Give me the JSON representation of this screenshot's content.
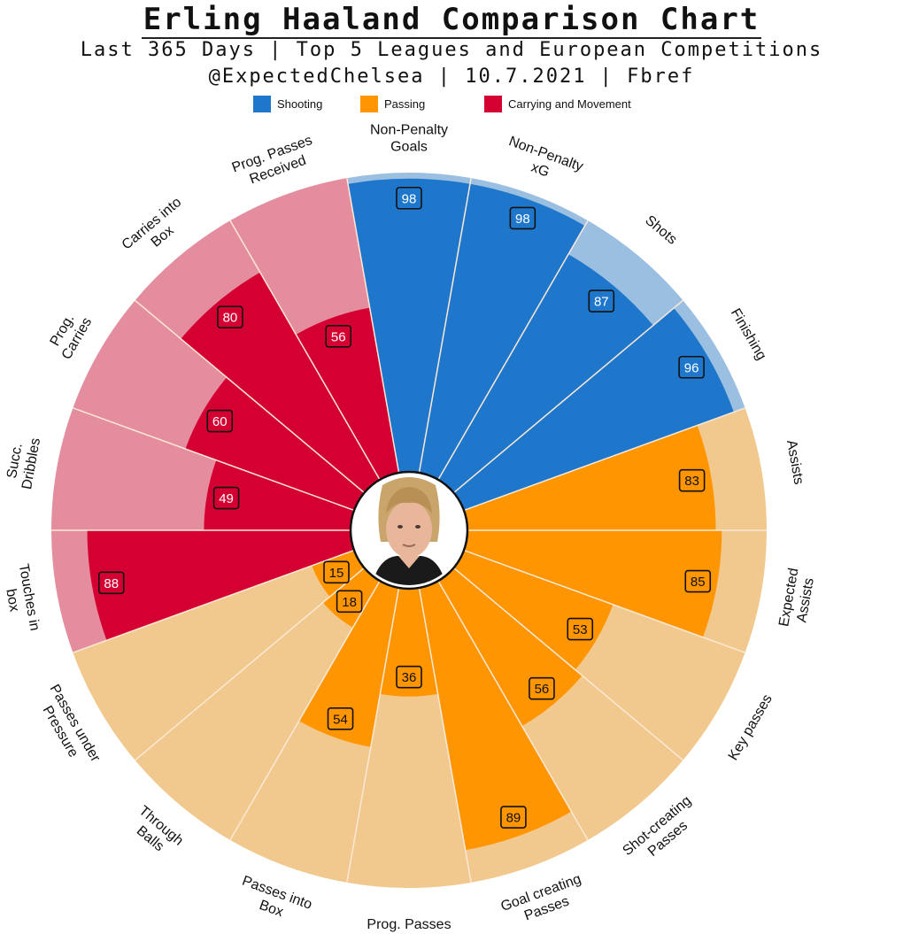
{
  "header": {
    "title": "Erling Haaland Comparison Chart",
    "subtitle_line1": "Last 365 Days | Top 5 Leagues and European Competitions",
    "subtitle_line2": "@ExpectedChelsea | 10.7.2021 | Fbref"
  },
  "legend": [
    {
      "label": "Shooting",
      "color": "#1f77cc"
    },
    {
      "label": "Passing",
      "color": "#ff9500"
    },
    {
      "label": "Carrying and Movement",
      "color": "#d50032"
    }
  ],
  "center": {
    "image": "player-photo"
  },
  "chart_data": {
    "type": "polar-bar",
    "title": "Erling Haaland Comparison Chart",
    "rmax": 100,
    "categories": [
      {
        "label": "Non-Penalty Goals",
        "value": 98,
        "group": "Shooting"
      },
      {
        "label": "Non-Penalty xG",
        "value": 98,
        "group": "Shooting"
      },
      {
        "label": "Shots",
        "value": 87,
        "group": "Shooting"
      },
      {
        "label": "Finishing",
        "value": 96,
        "group": "Shooting"
      },
      {
        "label": "Assists",
        "value": 83,
        "group": "Passing"
      },
      {
        "label": "Expected Assists",
        "value": 85,
        "group": "Passing"
      },
      {
        "label": "Key passes",
        "value": 53,
        "group": "Passing"
      },
      {
        "label": "Shot-creating Passes",
        "value": 56,
        "group": "Passing"
      },
      {
        "label": "Goal creating Passes",
        "value": 89,
        "group": "Passing"
      },
      {
        "label": "Prog. Passes",
        "value": 36,
        "group": "Passing"
      },
      {
        "label": "Passes into Box",
        "value": 54,
        "group": "Passing"
      },
      {
        "label": "Through Balls",
        "value": 18,
        "group": "Passing"
      },
      {
        "label": "Passes under Pressure",
        "value": 15,
        "group": "Passing"
      },
      {
        "label": "Touches in box",
        "value": 88,
        "group": "Carrying and Movement"
      },
      {
        "label": "Succ. Dribbles",
        "value": 49,
        "group": "Carrying and Movement"
      },
      {
        "label": "Prog. Carries",
        "value": 60,
        "group": "Carrying and Movement"
      },
      {
        "label": "Carries into Box",
        "value": 80,
        "group": "Carrying and Movement"
      },
      {
        "label": "Prog. Passes Received",
        "value": 56,
        "group": "Carrying and Movement"
      }
    ],
    "colors": {
      "Shooting": {
        "bar": "#1f77cc",
        "bg": "#9bbfe0"
      },
      "Passing": {
        "bar": "#ff9500",
        "bg": "#f1c98e"
      },
      "Carrying and Movement": {
        "bar": "#d50032",
        "bg": "#e48d9e"
      }
    }
  }
}
